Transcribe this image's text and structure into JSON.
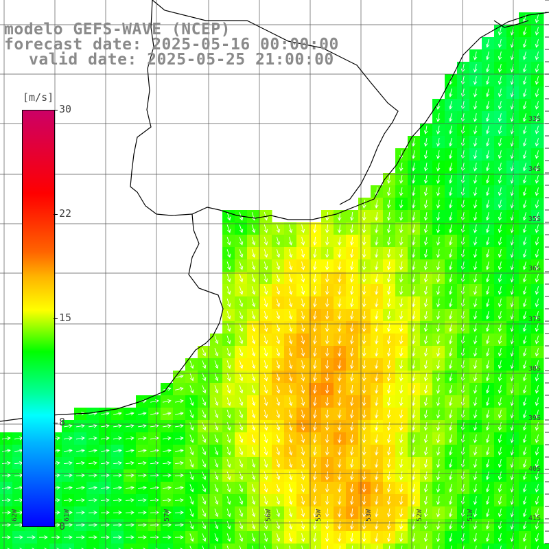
{
  "title": {
    "line1": "modelo GEFS-WAVE (NCEP)",
    "line2": "forecast date: 2025-05-16 00:00:00",
    "line3": "valid date: 2025-05-25 21:00:00"
  },
  "colorbar": {
    "unit": "[m/s]",
    "ticks": [
      "30",
      "22",
      "15",
      "8",
      "0"
    ],
    "stops": [
      "#0000ff",
      "#00ffff",
      "#00ff00",
      "#ffff00",
      "#ff6400",
      "#ff0000",
      "#cc0066"
    ]
  },
  "lat_labels": [
    "33S",
    "34S",
    "35S",
    "36S",
    "37S",
    "38S",
    "39S",
    "40S",
    "41S"
  ],
  "lon_labels": [
    "62W",
    "61W",
    "57W",
    "56W",
    "55W",
    "53W",
    "52W",
    "51W"
  ],
  "chart_data": {
    "type": "heatmap",
    "variable": "wind speed",
    "unit": "m/s",
    "color_range": [
      0,
      30
    ]
  }
}
